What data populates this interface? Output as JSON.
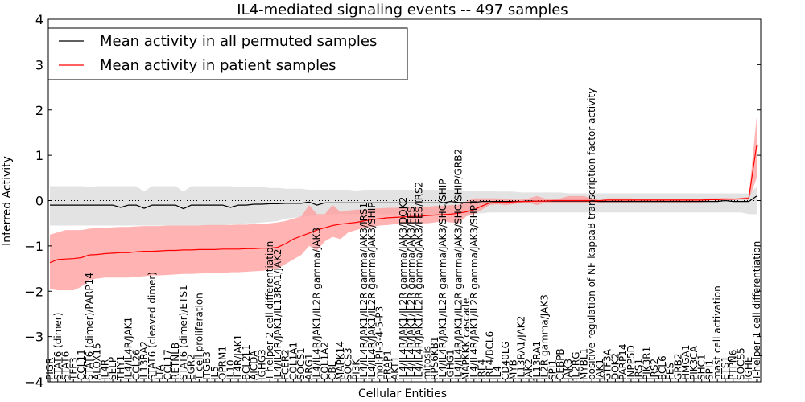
{
  "chart_data": {
    "type": "line",
    "title": "IL4-mediated signaling events -- 497 samples",
    "xlabel": "Cellular Entities",
    "ylabel": "Inferred Activity",
    "ylim": [
      -4,
      4
    ],
    "yticks": [
      -4,
      -3,
      -2,
      -1,
      0,
      1,
      2,
      3,
      4
    ],
    "ytick_labels": [
      "−4",
      "−3",
      "−2",
      "−1",
      "0",
      "1",
      "2",
      "3",
      "4"
    ],
    "reference_line": 0,
    "legend": {
      "position": "top-left",
      "entries": [
        {
          "label": "Mean activity in all permuted samples",
          "color": "#000000"
        },
        {
          "label": "Mean activity in patient samples",
          "color": "#ff0000"
        }
      ]
    },
    "colors": {
      "permuted_line": "#000000",
      "permuted_band": "#d9d9d9",
      "patient_line": "#ff0000",
      "patient_band": "#ff9999"
    },
    "categories": [
      "PIGR",
      "STAT6 (dimer)",
      "STAT6",
      "TFF3",
      "CCL11",
      "STAT6 (dimer)/PARP14",
      "ALOX15",
      "IL4R",
      "SELP",
      "THY1",
      "IL4/IL4R/JAK1",
      "CCL26",
      "IL13RA2",
      "STAT6 (cleaved dimer)",
      "LTA",
      "CCL17",
      "RETNLB",
      "STAT6 (dimer)/ETS1",
      "EGR2",
      "T cell proliferation",
      "ITGB3",
      "IL5",
      "OPRM1",
      "IL10",
      "IL4R/JAK1",
      "BCL2L1",
      "AICDA",
      "IGHG3",
      "T-helper 2 cell differentiation",
      "IL4/IL4R/JAK1/IL13RA1/JAK2",
      "FCER2",
      "COL1A1",
      "SOCS1",
      "ARG1",
      "IL4/IL4R/JAK1/IL2R gamma/JAK3",
      "COL1A2",
      "CBL",
      "MAPK14",
      "SOCS3",
      "PI3K",
      "IL4/IL4R/JAK1/IL2R gamma/JAK3/IRS1",
      "IL4/IL4R/JAK1/IL2R gamma/JAK3/SHIP",
      "mol:PI-3-4-5-P3",
      "FRAP1",
      "AKT1",
      "IL4/IL4R/JAK1/IL2R gamma/JAK3/DOK2",
      "IL4/IL4R/JAK1/IL2R gamma/JAK3/FES",
      "IL4/IL4R/JAK1/IL2R gamma/JAK3/FES/IRS2",
      "mitosis",
      "RPS6KB1",
      "IL4/IL4R/JAK1/IL2R gamma/JAK3/SHC/SHIP",
      "IGHG1",
      "IL4/IL4R/JAK1/IL2R gamma/JAK3/SHC/SHIP/GRB2",
      "MAPKKK cascade",
      "IL4/IL4R/JAK1/IL2R gamma/JAK3/SHP1",
      "IRF4",
      "IRF4/BCL6",
      "IL4",
      "CD40LG",
      "MYB",
      "IL13RA1/JAK2",
      "JAK2",
      "IL13RA1",
      "IL2R gamma/JAK3",
      "SPI1",
      "CEBPB",
      "JAK3",
      "IL2RG",
      "MYBL1",
      "positive regulation of NF-kappaB transcription factor activity",
      "JAK1",
      "GTF3A",
      "DOK2",
      "PARP14",
      "INPP5D",
      "IRS1",
      "PIK3R1",
      "IRS2",
      "BCL6",
      "FES",
      "GRB2",
      "HMGA1",
      "PIK3CA",
      "SHC1",
      "SPI1",
      "mast cell activation",
      "ETS1",
      "PTPN6",
      "SOCS5",
      "IGHE",
      "T-helper 1 cell differentiation"
    ],
    "series": [
      {
        "name": "Mean activity in all permuted samples",
        "values": [
          -0.1,
          -0.1,
          -0.1,
          -0.1,
          -0.1,
          -0.1,
          -0.1,
          -0.1,
          -0.1,
          -0.15,
          -0.1,
          -0.1,
          -0.17,
          -0.1,
          -0.1,
          -0.1,
          -0.1,
          -0.18,
          -0.1,
          -0.1,
          -0.1,
          -0.1,
          -0.1,
          -0.15,
          -0.1,
          -0.1,
          -0.08,
          -0.08,
          -0.07,
          -0.07,
          -0.06,
          -0.06,
          -0.06,
          -0.03,
          -0.1,
          -0.05,
          -0.05,
          -0.05,
          -0.05,
          -0.05,
          -0.05,
          -0.05,
          -0.05,
          -0.05,
          -0.05,
          -0.05,
          -0.05,
          -0.05,
          -0.05,
          -0.05,
          -0.05,
          -0.02,
          -0.04,
          -0.04,
          -0.04,
          -0.02,
          -0.02,
          -0.02,
          -0.02,
          -0.02,
          -0.02,
          -0.01,
          -0.01,
          -0.01,
          -0.01,
          -0.01,
          -0.01,
          -0.01,
          -0.01,
          -0.01,
          -0.02,
          -0.02,
          -0.02,
          -0.02,
          -0.02,
          -0.02,
          -0.02,
          -0.02,
          -0.02,
          -0.02,
          -0.02,
          -0.02,
          -0.02,
          -0.02,
          -0.02,
          -0.02,
          0.0,
          -0.02,
          -0.02,
          -0.02,
          0.1
        ],
        "band_lower": [
          -0.55,
          -0.55,
          -0.55,
          -0.55,
          -0.55,
          -0.55,
          -0.55,
          -0.55,
          -0.55,
          -0.55,
          -0.55,
          -0.55,
          -0.55,
          -0.55,
          -0.55,
          -0.55,
          -0.55,
          -0.55,
          -0.55,
          -0.55,
          -0.55,
          -0.55,
          -0.55,
          -0.53,
          -0.53,
          -0.5,
          -0.5,
          -0.48,
          -0.47,
          -0.45,
          -0.4,
          -0.38,
          -0.36,
          -0.34,
          -0.33,
          -0.3,
          -0.3,
          -0.3,
          -0.3,
          -0.3,
          -0.3,
          -0.3,
          -0.3,
          -0.3,
          -0.3,
          -0.3,
          -0.3,
          -0.3,
          -0.3,
          -0.3,
          -0.3,
          -0.3,
          -0.3,
          -0.3,
          -0.3,
          -0.28,
          -0.26,
          -0.26,
          -0.26,
          -0.26,
          -0.26,
          -0.26,
          -0.26,
          -0.26,
          -0.26,
          -0.26,
          -0.26,
          -0.26,
          -0.26,
          -0.26,
          -0.26,
          -0.26,
          -0.26,
          -0.26,
          -0.26,
          -0.26,
          -0.26,
          -0.26,
          -0.26,
          -0.26,
          -0.26,
          -0.26,
          -0.26,
          -0.26,
          -0.26,
          -0.26,
          -0.26,
          -0.26,
          -0.26,
          -0.3,
          -0.3
        ],
        "band_upper": [
          0.32,
          0.32,
          0.32,
          0.32,
          0.32,
          0.3,
          0.32,
          0.32,
          0.32,
          0.32,
          0.32,
          0.32,
          0.2,
          0.32,
          0.32,
          0.32,
          0.32,
          0.2,
          0.32,
          0.32,
          0.32,
          0.32,
          0.32,
          0.32,
          0.3,
          0.3,
          0.3,
          0.3,
          0.28,
          0.28,
          0.26,
          0.26,
          0.26,
          0.24,
          0.24,
          0.24,
          0.24,
          0.24,
          0.24,
          0.22,
          0.24,
          0.24,
          0.24,
          0.24,
          0.24,
          0.24,
          0.24,
          0.24,
          0.24,
          0.24,
          0.24,
          0.24,
          0.24,
          0.22,
          0.22,
          0.22,
          0.22,
          0.2,
          0.2,
          0.2,
          0.18,
          0.18,
          0.18,
          0.18,
          0.18,
          0.18,
          0.16,
          0.16,
          0.16,
          0.16,
          0.16,
          0.16,
          0.16,
          0.16,
          0.16,
          0.16,
          0.16,
          0.16,
          0.16,
          0.16,
          0.16,
          0.16,
          0.16,
          0.16,
          0.16,
          0.16,
          0.16,
          0.16,
          0.16,
          0.16,
          0.3
        ]
      },
      {
        "name": "Mean activity in patient samples",
        "values": [
          -1.37,
          -1.3,
          -1.29,
          -1.28,
          -1.26,
          -1.2,
          -1.19,
          -1.17,
          -1.16,
          -1.15,
          -1.15,
          -1.13,
          -1.12,
          -1.12,
          -1.11,
          -1.1,
          -1.1,
          -1.09,
          -1.09,
          -1.08,
          -1.08,
          -1.08,
          -1.07,
          -1.07,
          -1.07,
          -1.06,
          -1.06,
          -1.05,
          -1.05,
          -1.03,
          -0.95,
          -0.85,
          -0.78,
          -0.72,
          -0.65,
          -0.6,
          -0.55,
          -0.52,
          -0.5,
          -0.48,
          -0.45,
          -0.42,
          -0.4,
          -0.38,
          -0.37,
          -0.36,
          -0.35,
          -0.35,
          -0.33,
          -0.32,
          -0.31,
          -0.3,
          -0.28,
          -0.25,
          -0.2,
          -0.12,
          -0.05,
          -0.04,
          -0.04,
          -0.03,
          -0.02,
          -0.02,
          -0.01,
          -0.01,
          0.0,
          0.0,
          0.0,
          0.0,
          0.0,
          0.0,
          0.0,
          0.01,
          0.01,
          0.01,
          0.01,
          0.01,
          0.01,
          0.01,
          0.01,
          0.01,
          0.01,
          0.01,
          0.01,
          0.01,
          0.02,
          0.02,
          0.03,
          0.03,
          0.04,
          0.05,
          1.23
        ],
        "band_lower": [
          -1.95,
          -1.98,
          -1.98,
          -1.98,
          -1.9,
          -1.75,
          -1.72,
          -1.7,
          -1.7,
          -1.7,
          -1.7,
          -1.68,
          -1.67,
          -1.65,
          -1.65,
          -1.64,
          -1.63,
          -1.62,
          -1.62,
          -1.61,
          -1.6,
          -1.6,
          -1.6,
          -1.58,
          -1.58,
          -1.57,
          -1.56,
          -1.55,
          -1.52,
          -1.5,
          -1.4,
          -1.3,
          -1.2,
          -1.0,
          -1.1,
          -0.9,
          -0.8,
          -0.85,
          -0.7,
          -0.65,
          -0.6,
          -0.58,
          -0.55,
          -0.54,
          -0.52,
          -0.52,
          -0.5,
          -0.5,
          -0.5,
          -0.48,
          -0.45,
          -0.48,
          -0.5,
          -0.35,
          -0.3,
          -0.2,
          -0.1,
          -0.08,
          -0.1,
          -0.08,
          -0.05,
          -0.05,
          -0.1,
          -0.05,
          -0.05,
          -0.05,
          -0.05,
          -0.05,
          -0.05,
          -0.05,
          -0.05,
          -0.04,
          -0.04,
          -0.04,
          -0.04,
          -0.04,
          -0.04,
          -0.04,
          -0.04,
          -0.04,
          -0.04,
          -0.04,
          -0.04,
          -0.04,
          0.0,
          0.0,
          0.01,
          0.01,
          0.02,
          0.02,
          0.5
        ],
        "band_upper": [
          -0.75,
          -0.7,
          -0.65,
          -0.65,
          -0.65,
          -0.62,
          -0.6,
          -0.6,
          -0.59,
          -0.58,
          -0.58,
          -0.57,
          -0.56,
          -0.56,
          -0.56,
          -0.55,
          -0.55,
          -0.55,
          -0.55,
          -0.55,
          -0.54,
          -0.54,
          -0.54,
          -0.54,
          -0.53,
          -0.53,
          -0.52,
          -0.52,
          -0.5,
          -0.48,
          -0.45,
          -0.4,
          -0.35,
          -0.1,
          -0.3,
          -0.3,
          -0.1,
          -0.25,
          -0.22,
          -0.2,
          -0.2,
          -0.18,
          -0.17,
          -0.16,
          -0.16,
          -0.15,
          -0.15,
          -0.15,
          -0.14,
          -0.12,
          -0.12,
          -0.1,
          -0.1,
          -0.02,
          0.05,
          0.05,
          0.05,
          0.05,
          0.03,
          0.02,
          0.02,
          0.05,
          0.1,
          0.05,
          0.02,
          0.05,
          0.1,
          0.1,
          0.1,
          0.05,
          0.0,
          0.05,
          0.05,
          0.05,
          0.05,
          0.04,
          0.04,
          0.04,
          0.04,
          0.04,
          0.04,
          0.04,
          0.04,
          0.04,
          0.05,
          0.05,
          0.06,
          0.05,
          0.06,
          0.08,
          1.85
        ]
      }
    ]
  }
}
